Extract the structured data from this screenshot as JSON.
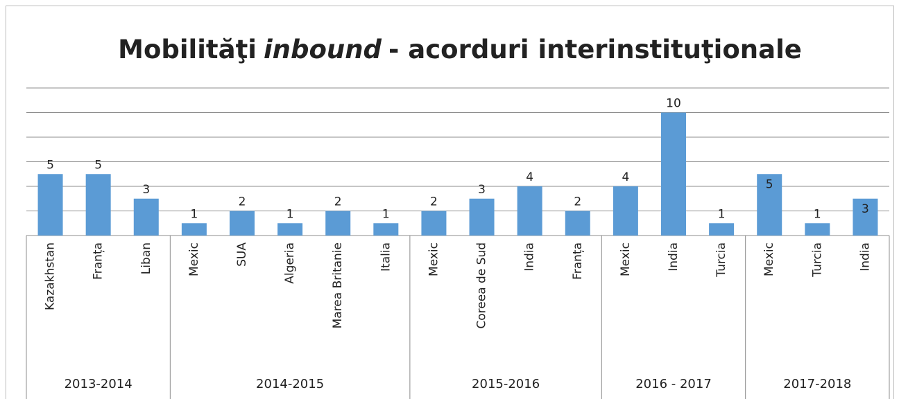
{
  "chart_data": {
    "type": "bar",
    "title": [
      "Mobilităţi",
      "inbound",
      "- acorduri interinstituţionale"
    ],
    "categories": [
      "Kazakhstan",
      "Franța",
      "Liban",
      "Mexic",
      "SUA",
      "Algeria",
      "Marea Britanie",
      "Italia",
      "Mexic",
      "Coreea de Sud",
      "India",
      "Franța",
      "Mexic",
      "India",
      "Turcia",
      "Mexic",
      "Turcia",
      "India"
    ],
    "groups": [
      {
        "name": "2013-2014",
        "count": 3
      },
      {
        "name": "2014-2015",
        "count": 5
      },
      {
        "name": "2015-2016",
        "count": 4
      },
      {
        "name": "2016 - 2017",
        "count": 3
      },
      {
        "name": "2017-2018",
        "count": 3
      }
    ],
    "values": [
      5,
      5,
      3,
      1,
      2,
      1,
      2,
      1,
      2,
      3,
      4,
      2,
      4,
      10,
      1,
      5,
      1,
      3
    ],
    "label_positions": [
      "outside",
      "outside",
      "outside",
      "outside",
      "outside",
      "outside",
      "outside",
      "outside",
      "outside",
      "outside",
      "outside",
      "outside",
      "outside",
      "outside",
      "outside",
      "inside_end",
      "outside",
      "inside_end"
    ],
    "color": "#5b9bd5",
    "ylim": [
      0,
      12
    ],
    "yticks": [
      0,
      2,
      4,
      6,
      8,
      10,
      12
    ],
    "grid": true,
    "ytick_labels": false
  }
}
